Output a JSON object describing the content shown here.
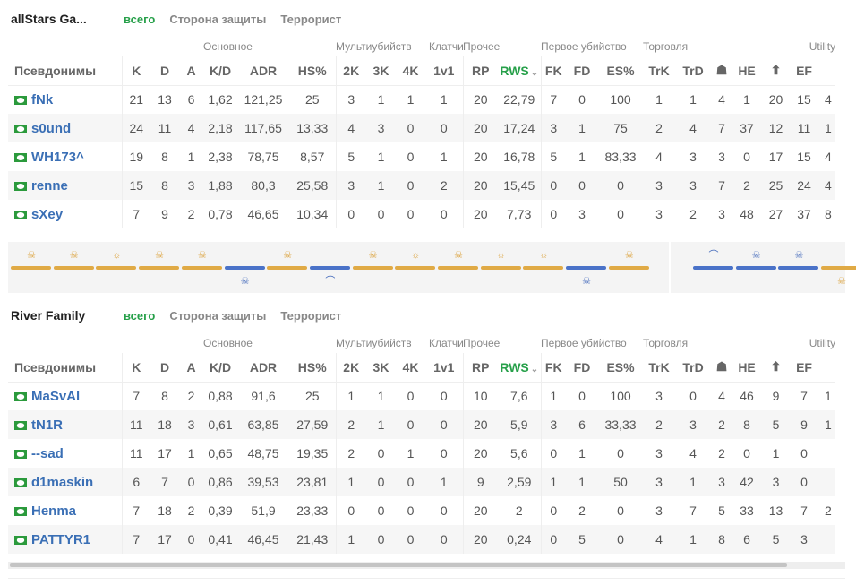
{
  "tabs": [
    "всего",
    "Сторона защиты",
    "Террорист"
  ],
  "groups": {
    "main": "Основное",
    "multi": "Мультиубийств",
    "clutch": "Клатчи",
    "other": "Прочее",
    "first": "Первое убийство",
    "trade": "Торговля",
    "utility": "Utility"
  },
  "columns": [
    "Псевдонимы",
    "K",
    "D",
    "A",
    "K/D",
    "ADR",
    "HS%",
    "2K",
    "3K",
    "4K",
    "1v1",
    "RP",
    "RWS",
    "FK",
    "FD",
    "ES%",
    "TrK",
    "TrD",
    "☗",
    "HE",
    "⬆",
    "EF"
  ],
  "sort_arrow": "⌄",
  "teams": [
    {
      "name": "allStars Ga...",
      "players": [
        {
          "name": "fNk",
          "stats": [
            "21",
            "13",
            "6",
            "1,62",
            "121,25",
            "25",
            "3",
            "1",
            "1",
            "1",
            "20",
            "22,79",
            "7",
            "0",
            "100",
            "1",
            "1",
            "4",
            "1",
            "20",
            "15"
          ],
          "extra": "4"
        },
        {
          "name": "s0und",
          "stats": [
            "24",
            "11",
            "4",
            "2,18",
            "117,65",
            "13,33",
            "4",
            "3",
            "0",
            "0",
            "20",
            "17,24",
            "3",
            "1",
            "75",
            "2",
            "4",
            "7",
            "37",
            "12",
            "11"
          ],
          "extra": "1"
        },
        {
          "name": "WH173^",
          "stats": [
            "19",
            "8",
            "1",
            "2,38",
            "78,75",
            "8,57",
            "5",
            "1",
            "0",
            "1",
            "20",
            "16,78",
            "5",
            "1",
            "83,33",
            "4",
            "3",
            "3",
            "0",
            "17",
            "15"
          ],
          "extra": "4"
        },
        {
          "name": "renne",
          "stats": [
            "15",
            "8",
            "3",
            "1,88",
            "80,3",
            "25,58",
            "3",
            "1",
            "0",
            "2",
            "20",
            "15,45",
            "0",
            "0",
            "0",
            "3",
            "3",
            "7",
            "2",
            "25",
            "24"
          ],
          "extra": "4"
        },
        {
          "name": "sXey",
          "stats": [
            "7",
            "9",
            "2",
            "0,78",
            "46,65",
            "10,34",
            "0",
            "0",
            "0",
            "0",
            "20",
            "7,73",
            "0",
            "3",
            "0",
            "3",
            "2",
            "3",
            "48",
            "27",
            "37"
          ],
          "extra": "8"
        }
      ]
    },
    {
      "name": "River Family",
      "players": [
        {
          "name": "MaSvAl",
          "stats": [
            "7",
            "8",
            "2",
            "0,88",
            "91,6",
            "25",
            "1",
            "1",
            "0",
            "0",
            "10",
            "7,6",
            "1",
            "0",
            "100",
            "3",
            "0",
            "4",
            "46",
            "9",
            "7"
          ],
          "extra": "1"
        },
        {
          "name": "tN1R",
          "stats": [
            "11",
            "18",
            "3",
            "0,61",
            "63,85",
            "27,59",
            "2",
            "1",
            "0",
            "0",
            "20",
            "5,9",
            "3",
            "6",
            "33,33",
            "2",
            "3",
            "2",
            "8",
            "5",
            "9"
          ],
          "extra": "1"
        },
        {
          "name": "--sad",
          "stats": [
            "11",
            "17",
            "1",
            "0,65",
            "48,75",
            "19,35",
            "2",
            "0",
            "1",
            "0",
            "20",
            "5,6",
            "0",
            "1",
            "0",
            "3",
            "4",
            "2",
            "0",
            "1",
            "0"
          ],
          "extra": ""
        },
        {
          "name": "d1maskin",
          "stats": [
            "6",
            "7",
            "0",
            "0,86",
            "39,53",
            "23,81",
            "1",
            "0",
            "0",
            "1",
            "9",
            "2,59",
            "1",
            "1",
            "50",
            "3",
            "1",
            "3",
            "42",
            "3",
            "0"
          ],
          "extra": ""
        },
        {
          "name": "Henma",
          "stats": [
            "7",
            "18",
            "2",
            "0,39",
            "51,9",
            "23,33",
            "0",
            "0",
            "0",
            "0",
            "20",
            "2",
            "0",
            "2",
            "0",
            "3",
            "7",
            "5",
            "33",
            "13",
            "7"
          ],
          "extra": "2"
        },
        {
          "name": "PATTYR1",
          "stats": [
            "7",
            "17",
            "0",
            "0,41",
            "46,45",
            "21,43",
            "1",
            "0",
            "0",
            "0",
            "20",
            "0,24",
            "0",
            "5",
            "0",
            "4",
            "1",
            "8",
            "6",
            "5",
            "3"
          ],
          "extra": ""
        }
      ]
    }
  ],
  "rounds": [
    {
      "side": "t",
      "icon": "skull-icon",
      "glyph": "☠",
      "pos": "top"
    },
    {
      "side": "t",
      "icon": "skull-icon",
      "glyph": "☠",
      "pos": "top"
    },
    {
      "side": "t",
      "icon": "bomb-explode-icon",
      "glyph": "☼",
      "pos": "top"
    },
    {
      "side": "t",
      "icon": "skull-icon",
      "glyph": "☠",
      "pos": "top"
    },
    {
      "side": "t",
      "icon": "skull-icon",
      "glyph": "☠",
      "pos": "top"
    },
    {
      "side": "ct",
      "icon": "skull-icon",
      "glyph": "☠",
      "pos": "bot"
    },
    {
      "side": "t",
      "icon": "skull-icon",
      "glyph": "☠",
      "pos": "top"
    },
    {
      "side": "ct",
      "icon": "defuse-icon",
      "glyph": "⌒",
      "pos": "bot"
    },
    {
      "side": "t",
      "icon": "skull-icon",
      "glyph": "☠",
      "pos": "top"
    },
    {
      "side": "t",
      "icon": "bomb-explode-icon",
      "glyph": "☼",
      "pos": "top"
    },
    {
      "side": "t",
      "icon": "skull-icon",
      "glyph": "☠",
      "pos": "top"
    },
    {
      "side": "t",
      "icon": "bomb-explode-icon",
      "glyph": "☼",
      "pos": "top"
    },
    {
      "side": "t",
      "icon": "bomb-explode-icon",
      "glyph": "☼",
      "pos": "top"
    },
    {
      "side": "ct",
      "icon": "skull-icon",
      "glyph": "☠",
      "pos": "bot"
    },
    {
      "side": "t",
      "icon": "skull-icon",
      "glyph": "☠",
      "pos": "top"
    },
    {
      "side": "ct",
      "icon": "defuse-icon",
      "glyph": "⌒",
      "pos": "top",
      "gap": true
    },
    {
      "side": "ct",
      "icon": "skull-icon",
      "glyph": "☠",
      "pos": "top"
    },
    {
      "side": "ct",
      "icon": "skull-icon",
      "glyph": "☠",
      "pos": "top"
    },
    {
      "side": "t",
      "icon": "skull-icon",
      "glyph": "☠",
      "pos": "bot"
    }
  ],
  "colors": {
    "t": "#e0aa45",
    "ct": "#4a72c8",
    "accent": "#27a04a",
    "player": "#3a6fb5"
  }
}
